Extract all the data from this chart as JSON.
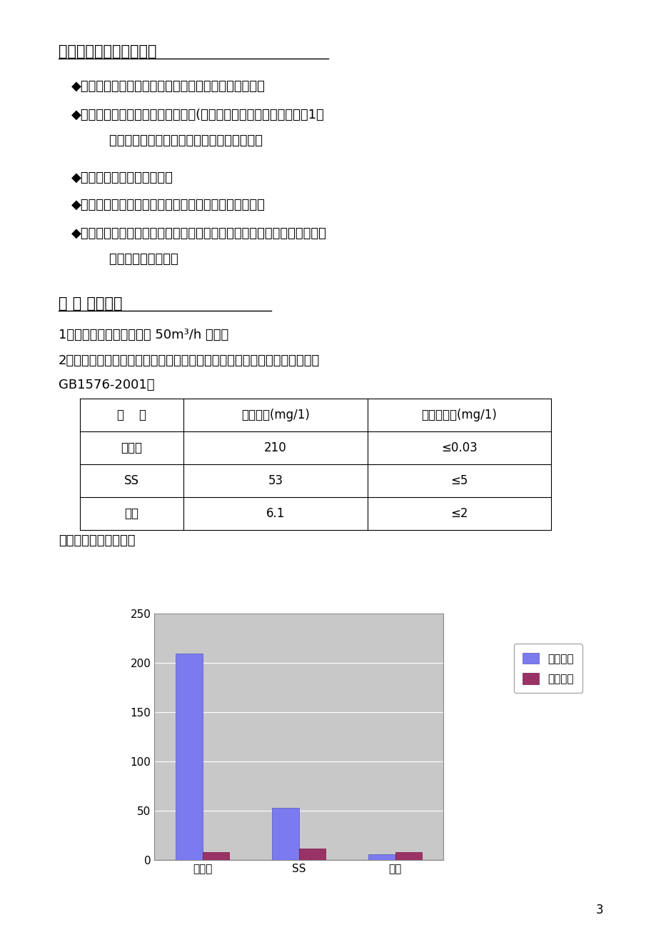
{
  "page_bg": "#ffffff",
  "section2_title": "二、系统设计及供货范围",
  "section3_title": "三 、 设计参数",
  "bullet1": "◆软化水处理系统工艺设备（含滤料、填料）购置、安装",
  "bullet2a": "◆软化水处理系统全部管道及附件等(进出水管道接至软化水车间外塹1米",
  "bullet2b": "    处，工艺系统排水就近排入地沟）采购、安装",
  "bullet3": "◆软化水处理系统安装、调试",
  "bullet4": "◆设备及材料包装、运输及保险，卸车、就位由业主负责",
  "bullet5a": "◆软化水车间土建工程（包含设备基础、地沟、钉筋混凝土池类、建筑预埋",
  "bullet5b": "    件等）不属设计范围",
  "text1": "1、处理水量：设计水量按 50m³/h 设计。",
  "text2": "2、水质及处理要求：进水按用户提供数据，出水达《锅炉软化水水质标准》",
  "text3": "GB1576-2001。",
  "caption": "处理效果如下图所示：",
  "th0": "项    目",
  "th1": "进水水质(mg/1)",
  "th2": "处理后要求(mg/1)",
  "tr0": [
    "总硬度",
    "210",
    "≤0.03"
  ],
  "tr1": [
    "SS",
    "53",
    "≤5"
  ],
  "tr2": [
    "含油",
    "6.1",
    "≤2"
  ],
  "cat0": "总硬度",
  "cat1": "SS",
  "cat2": "含油",
  "inlet_values": [
    210,
    53,
    6.1
  ],
  "outlet_display": [
    8,
    12,
    8
  ],
  "inlet_color": "#7b7bef",
  "outlet_color": "#993366",
  "chart_bg": "#c8c8c8",
  "grid_color": "#ffffff",
  "legend_in": "进水水质",
  "legend_out": "出水水质",
  "ylim_max": 250,
  "yticks": [
    0,
    50,
    100,
    150,
    200,
    250
  ],
  "page_num": "3"
}
